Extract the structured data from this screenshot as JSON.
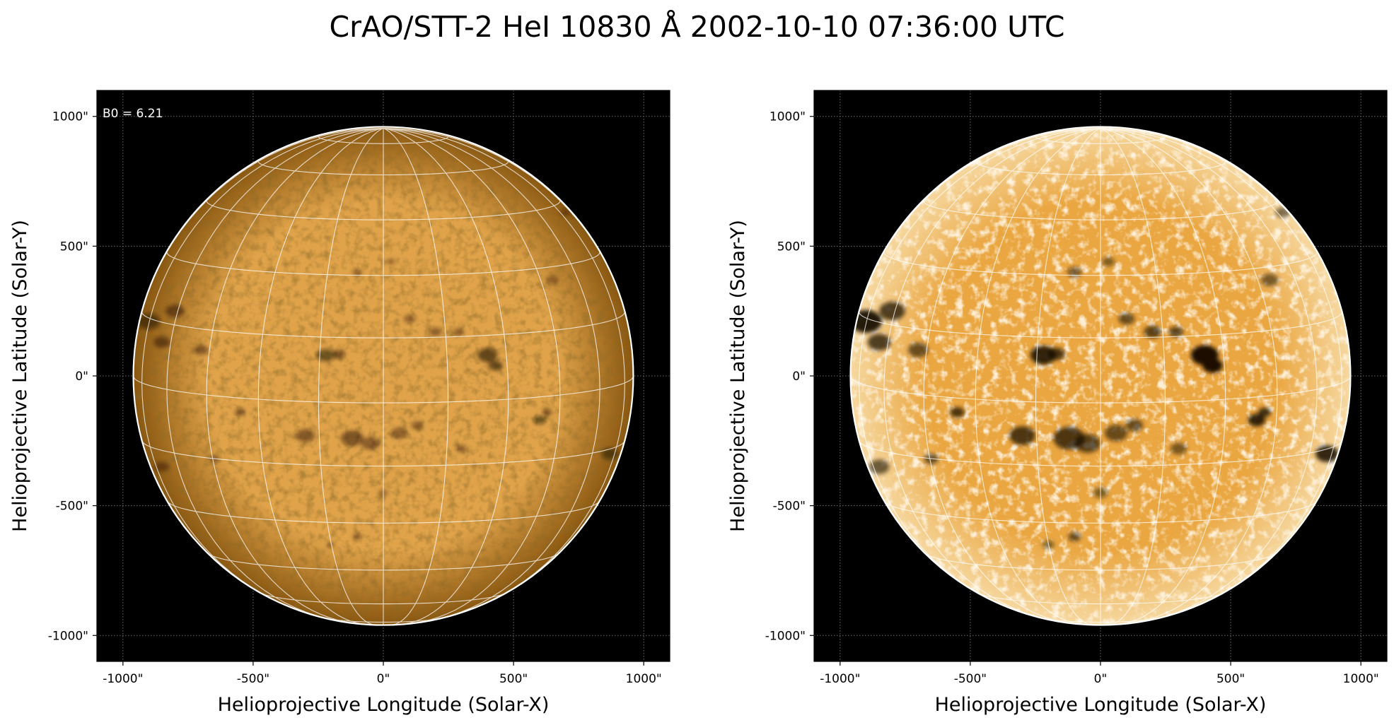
{
  "figure": {
    "title": "CrAO/STT-2 HeI 10830 Å 2002-10-10 07:36:00 UTC"
  },
  "panels": [
    {
      "id": "left",
      "annotation": "B0 = 6.21",
      "xlabel": "Helioprojective Longitude (Solar-X)",
      "ylabel": "Helioprojective Latitude (Solar-Y)",
      "xticks": [
        "-1000\"",
        "-500\"",
        "0\"",
        "500\"",
        "1000\""
      ],
      "yticks": [
        "1000\"",
        "500\"",
        "0\"",
        "-500\"",
        "-1000\""
      ],
      "disk_color_center": "#e0a34a",
      "disk_color_limb": "#8a5710",
      "background_color": "#000000",
      "contrast": "normal"
    },
    {
      "id": "right",
      "annotation": "",
      "xlabel": "Helioprojective Longitude (Solar-X)",
      "ylabel": "Helioprojective Latitude (Solar-Y)",
      "xticks": [
        "-1000\"",
        "-500\"",
        "0\"",
        "500\"",
        "1000\""
      ],
      "yticks": [
        "1000\"",
        "500\"",
        "0\"",
        "-500\"",
        "-1000\""
      ],
      "disk_color_center": "#eaa640",
      "disk_color_limb": "#f6d8a0",
      "background_color": "#000000",
      "contrast": "enhanced"
    }
  ],
  "axis": {
    "xlim": [
      -1100,
      1100
    ],
    "ylim": [
      -1100,
      1100
    ],
    "tick_values": [
      -1000,
      -500,
      0,
      500,
      1000
    ],
    "solar_radius_arcsec": 960,
    "b0_deg": 6.21,
    "grid_line_color": "#ffffff",
    "limb_color": "#ffffff"
  }
}
